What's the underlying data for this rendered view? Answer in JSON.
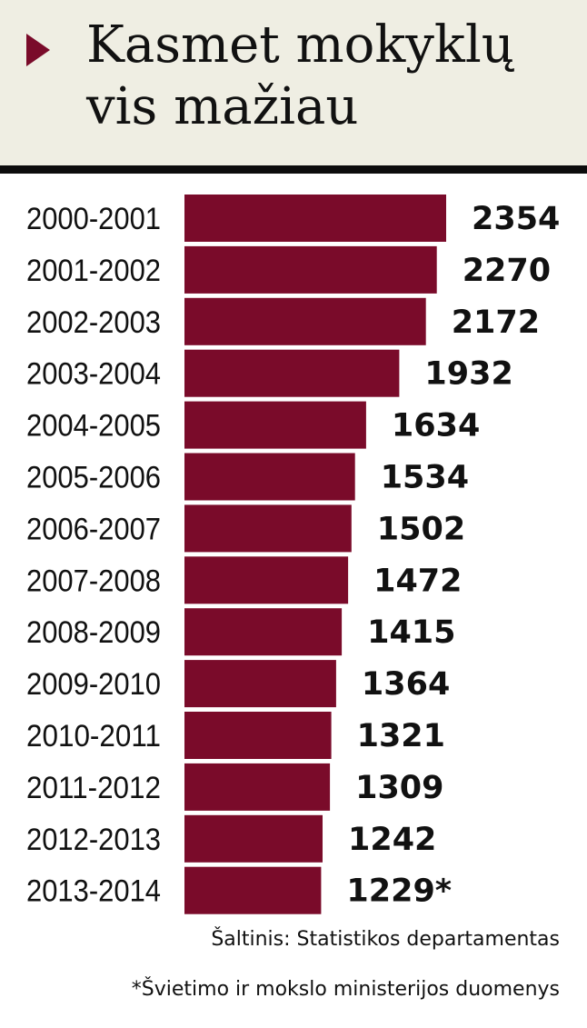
{
  "colors": {
    "header_background": "#efeee3",
    "accent": "#7a0b2a",
    "rule": "#0c0c0c",
    "text": "#111111"
  },
  "header": {
    "marker_icon": "triangle-right-icon",
    "title": "Kasmet mokyklų vis mažiau"
  },
  "chart_data": {
    "type": "bar",
    "orientation": "horizontal",
    "title": "Kasmet mokyklų vis mažiau",
    "categories": [
      "2000-2001",
      "2001-2002",
      "2002-2003",
      "2003-2004",
      "2004-2005",
      "2005-2006",
      "2006-2007",
      "2007-2008",
      "2008-2009",
      "2009-2010",
      "2010-2011",
      "2011-2012",
      "2012-2013",
      "2013-2014"
    ],
    "values": [
      2354,
      2270,
      2172,
      1932,
      1634,
      1534,
      1502,
      1472,
      1415,
      1364,
      1321,
      1309,
      1242,
      1229
    ],
    "value_labels": [
      "2354",
      "2270",
      "2172",
      "1932",
      "1634",
      "1534",
      "1502",
      "1472",
      "1415",
      "1364",
      "1321",
      "1309",
      "1242",
      "1229*"
    ],
    "xlim": [
      0,
      2354
    ],
    "grid": false,
    "legend": "none"
  },
  "notes": {
    "source": "Šaltinis: Statistikos departamentas",
    "footnote": "*Švietimo ir mokslo ministerijos duomenys"
  }
}
